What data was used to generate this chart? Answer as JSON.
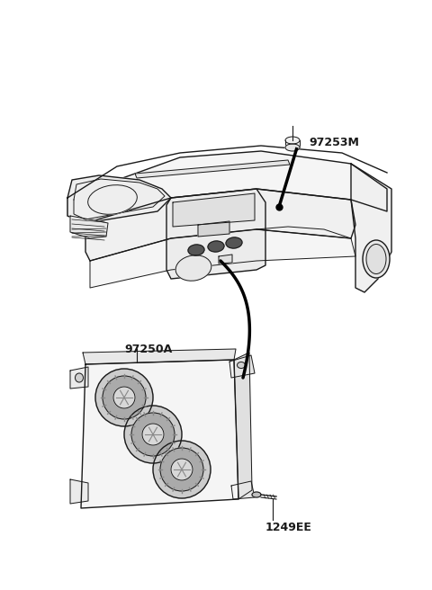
{
  "bg_color": "#ffffff",
  "line_color": "#1a1a1a",
  "label_color": "#1a1a1a",
  "fig_width": 4.8,
  "fig_height": 6.56,
  "dpi": 100,
  "label_97253M": "97253M",
  "label_97250A": "97250A",
  "label_1249EE": "1249EE"
}
